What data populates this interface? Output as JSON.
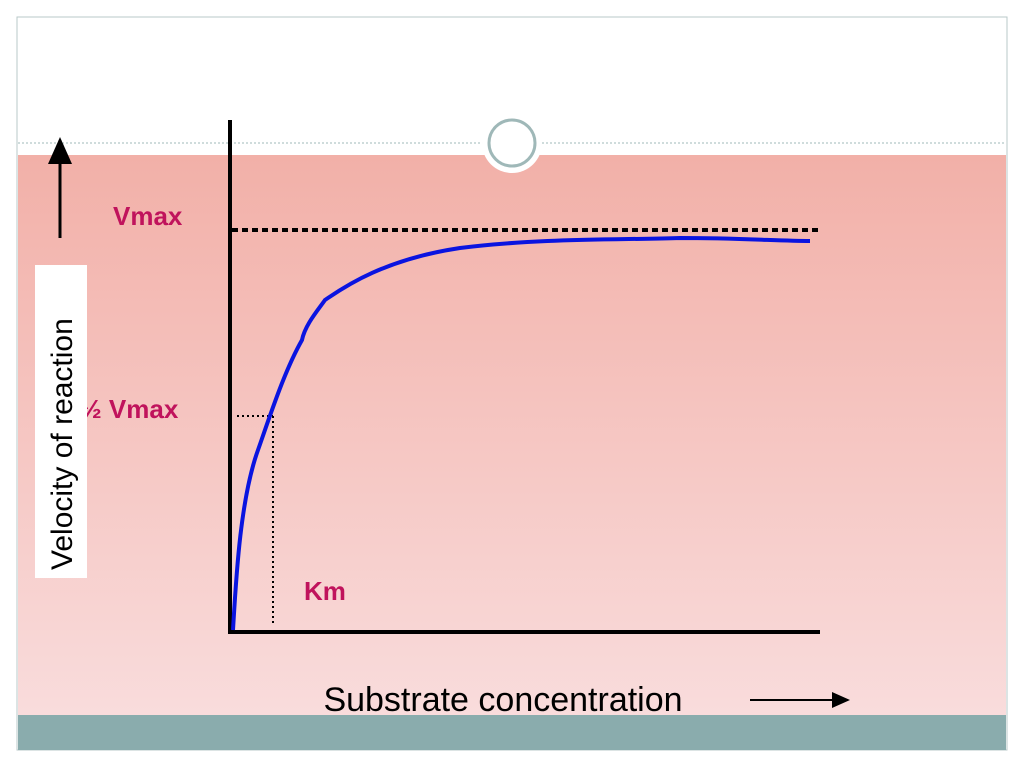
{
  "diagram": {
    "vmax_label": "Vmax",
    "half_vmax_label": "½ Vmax",
    "km_label": "Km",
    "y_axis_label": "Velocity of reaction",
    "x_axis_label": "Substrate concentration"
  }
}
